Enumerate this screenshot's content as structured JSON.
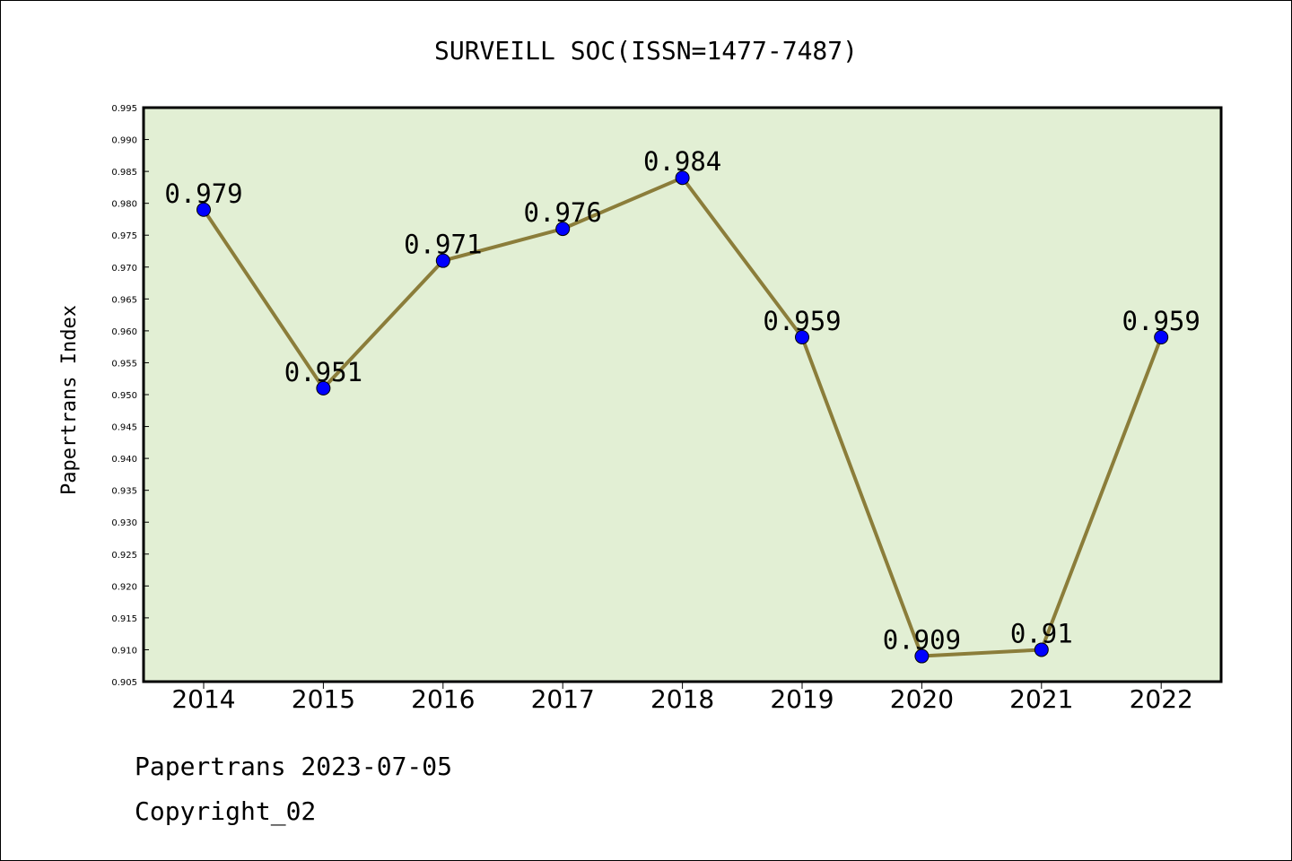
{
  "chart_data": {
    "type": "line",
    "title": "SURVEILL SOC(ISSN=1477-7487)",
    "ylabel": "Papertrans Index",
    "xlabel": "",
    "categories": [
      "2014",
      "2015",
      "2016",
      "2017",
      "2018",
      "2019",
      "2020",
      "2021",
      "2022"
    ],
    "values": [
      0.979,
      0.951,
      0.971,
      0.976,
      0.984,
      0.959,
      0.909,
      0.91,
      0.959
    ],
    "data_labels": [
      "0.979",
      "0.951",
      "0.971",
      "0.976",
      "0.984",
      "0.959",
      "0.909",
      "0.91",
      "0.959"
    ],
    "ylim": [
      0.905,
      0.995
    ],
    "yticks": [
      "0.905",
      "0.910",
      "0.915",
      "0.920",
      "0.925",
      "0.930",
      "0.935",
      "0.940",
      "0.945",
      "0.950",
      "0.955",
      "0.960",
      "0.965",
      "0.970",
      "0.975",
      "0.980",
      "0.985",
      "0.990",
      "0.995"
    ],
    "grid": false,
    "plot_background": "#e2efd4",
    "line_color": "#8b7d3a",
    "marker_color": "#0000ff"
  },
  "footer": {
    "line1": "Papertrans 2023-07-05",
    "line2": "Copyright_02"
  }
}
